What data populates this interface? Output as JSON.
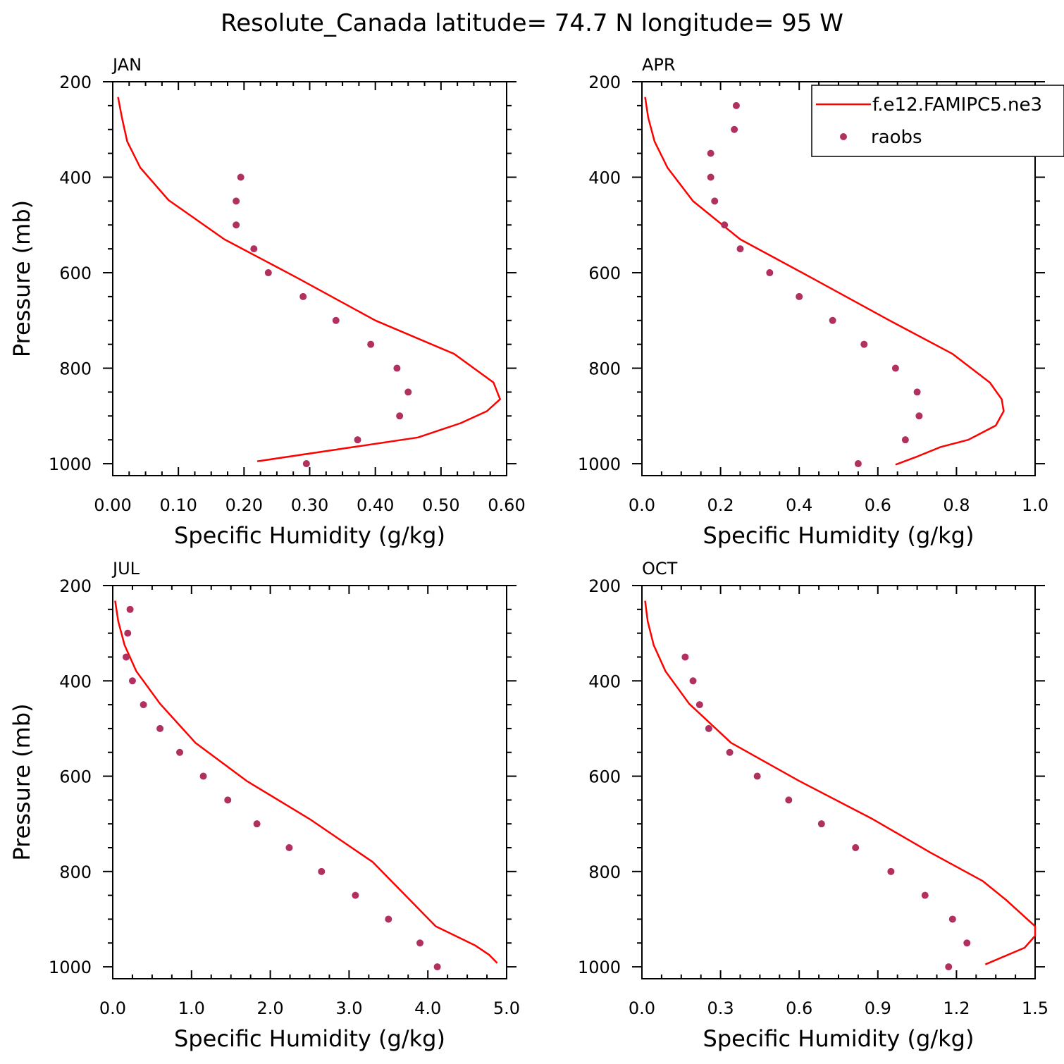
{
  "figure": {
    "title": "Resolute_Canada  latitude= 74.7 N longitude= 95 W"
  },
  "legend": {
    "model_label": "f.e12.FAMIPC5.ne3",
    "obs_label": "raobs",
    "placement": "top-right of APR panel"
  },
  "colors": {
    "model_line": "#ff0000",
    "obs_marker": "#b03060",
    "axes": "#000000"
  },
  "chart_data": [
    {
      "type": "line+scatter",
      "panel_label": "JAN",
      "xlabel": "Specific Humidity (g/kg)",
      "ylabel": "Pressure (mb)",
      "xlim": [
        0,
        0.6
      ],
      "ylim": [
        200,
        1025
      ],
      "y_inverted": true,
      "x_ticks": [
        "0.00",
        "0.10",
        "0.20",
        "0.30",
        "0.40",
        "0.50",
        "0.60"
      ],
      "y_ticks": [
        "200",
        "400",
        "600",
        "800",
        "1000"
      ],
      "model": {
        "name": "f.e12.FAMIPC5.ne3",
        "x": [
          0.008,
          0.014,
          0.022,
          0.042,
          0.085,
          0.17,
          0.28,
          0.4,
          0.52,
          0.58,
          0.59,
          0.57,
          0.53,
          0.465,
          0.22
        ],
        "y": [
          232,
          275,
          325,
          380,
          448,
          530,
          610,
          700,
          770,
          830,
          865,
          890,
          915,
          945,
          995
        ]
      },
      "obs": {
        "name": "raobs",
        "x": [
          0.195,
          0.188,
          0.188,
          0.215,
          0.237,
          0.29,
          0.34,
          0.393,
          0.433,
          0.45,
          0.437,
          0.373,
          0.295
        ],
        "y": [
          400,
          450,
          500,
          550,
          600,
          650,
          700,
          750,
          800,
          850,
          900,
          950,
          1000
        ]
      }
    },
    {
      "type": "line+scatter",
      "panel_label": "APR",
      "xlabel": "Specific Humidity (g/kg)",
      "ylabel": "",
      "xlim": [
        0,
        1.0
      ],
      "ylim": [
        200,
        1025
      ],
      "y_inverted": true,
      "x_ticks": [
        "0.0",
        "0.2",
        "0.4",
        "0.6",
        "0.8",
        "1.0"
      ],
      "y_ticks": [
        "200",
        "400",
        "600",
        "800",
        "1000"
      ],
      "model": {
        "name": "f.e12.FAMIPC5.ne3",
        "x": [
          0.008,
          0.016,
          0.032,
          0.065,
          0.13,
          0.25,
          0.43,
          0.63,
          0.79,
          0.885,
          0.915,
          0.92,
          0.9,
          0.83,
          0.76,
          0.7,
          0.645
        ],
        "y": [
          232,
          275,
          325,
          380,
          450,
          530,
          610,
          700,
          770,
          830,
          865,
          890,
          920,
          950,
          965,
          985,
          1002
        ]
      },
      "obs": {
        "name": "raobs",
        "x": [
          0.24,
          0.235,
          0.175,
          0.175,
          0.185,
          0.21,
          0.25,
          0.325,
          0.4,
          0.485,
          0.565,
          0.645,
          0.7,
          0.705,
          0.67,
          0.55
        ],
        "y": [
          250,
          300,
          350,
          400,
          450,
          500,
          550,
          600,
          650,
          700,
          750,
          800,
          850,
          900,
          950,
          1000
        ]
      }
    },
    {
      "type": "line+scatter",
      "panel_label": "JUL",
      "xlabel": "Specific Humidity (g/kg)",
      "ylabel": "Pressure (mb)",
      "xlim": [
        0,
        5.0
      ],
      "ylim": [
        200,
        1025
      ],
      "y_inverted": true,
      "x_ticks": [
        "0.0",
        "1.0",
        "2.0",
        "3.0",
        "4.0",
        "5.0"
      ],
      "y_ticks": [
        "200",
        "400",
        "600",
        "800",
        "1000"
      ],
      "model": {
        "name": "f.e12.FAMIPC5.ne3",
        "x": [
          0.03,
          0.07,
          0.15,
          0.3,
          0.6,
          1.05,
          1.7,
          2.5,
          3.3,
          4.1,
          4.6,
          4.78,
          4.88
        ],
        "y": [
          232,
          275,
          325,
          380,
          448,
          530,
          610,
          690,
          780,
          915,
          955,
          975,
          992
        ]
      },
      "obs": {
        "name": "raobs",
        "x": [
          0.22,
          0.19,
          0.17,
          0.25,
          0.39,
          0.6,
          0.85,
          1.15,
          1.46,
          1.83,
          2.24,
          2.65,
          3.08,
          3.5,
          3.9,
          4.12
        ],
        "y": [
          250,
          300,
          350,
          400,
          450,
          500,
          550,
          600,
          650,
          700,
          750,
          800,
          850,
          900,
          950,
          1000
        ]
      }
    },
    {
      "type": "line+scatter",
      "panel_label": "OCT",
      "xlabel": "Specific Humidity (g/kg)",
      "ylabel": "",
      "xlim": [
        0,
        1.5
      ],
      "ylim": [
        200,
        1025
      ],
      "y_inverted": true,
      "x_ticks": [
        "0.0",
        "0.3",
        "0.6",
        "0.9",
        "1.2",
        "1.5"
      ],
      "y_ticks": [
        "200",
        "400",
        "600",
        "800",
        "1000"
      ],
      "model": {
        "name": "f.e12.FAMIPC5.ne3",
        "x": [
          0.012,
          0.022,
          0.045,
          0.09,
          0.18,
          0.34,
          0.6,
          0.88,
          1.1,
          1.3,
          1.39,
          1.45,
          1.5,
          1.5,
          1.46,
          1.31
        ],
        "y": [
          232,
          275,
          325,
          380,
          448,
          530,
          610,
          690,
          760,
          820,
          860,
          890,
          915,
          935,
          960,
          995
        ]
      },
      "obs": {
        "name": "raobs",
        "x": [
          0.165,
          0.195,
          0.22,
          0.255,
          0.335,
          0.44,
          0.56,
          0.685,
          0.815,
          0.95,
          1.08,
          1.185,
          1.24,
          1.17
        ],
        "y": [
          350,
          400,
          450,
          500,
          550,
          600,
          650,
          700,
          750,
          800,
          850,
          900,
          950,
          1000
        ]
      }
    }
  ]
}
